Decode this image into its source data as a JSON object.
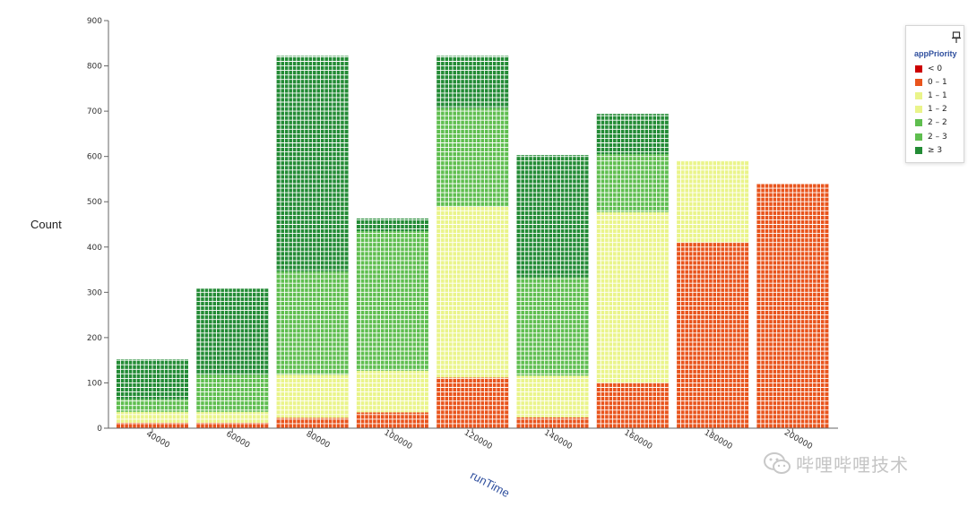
{
  "chart_data": {
    "type": "bar",
    "stacked": true,
    "title": "",
    "xlabel": "runTime",
    "ylabel": "Count",
    "ylim": [
      0,
      900
    ],
    "y_ticks": [
      0,
      100,
      200,
      300,
      400,
      500,
      600,
      700,
      800,
      900
    ],
    "categories": [
      "40000",
      "60000",
      "80000",
      "100000",
      "120000",
      "140000",
      "160000",
      "180000",
      "200000"
    ],
    "legend_title": "appPriority",
    "legend_position": "top-right",
    "series": [
      {
        "name": "< 0",
        "color": "#cc0000",
        "values": [
          0,
          0,
          0,
          0,
          0,
          0,
          0,
          0,
          0
        ]
      },
      {
        "name": "0 – 1",
        "color": "#e9541c",
        "values": [
          12,
          12,
          23,
          35,
          112,
          24,
          100,
          410,
          540
        ]
      },
      {
        "name": "1 – 1",
        "color": "#eaf48a",
        "values": [
          0,
          0,
          0,
          0,
          0,
          0,
          0,
          0,
          0
        ]
      },
      {
        "name": "1 – 2",
        "color": "#eaf48a",
        "values": [
          24,
          24,
          95,
          92,
          377,
          92,
          377,
          181,
          0
        ]
      },
      {
        "name": "2 – 2",
        "color": "#5fbe4f",
        "values": [
          0,
          0,
          0,
          0,
          0,
          0,
          0,
          0,
          0
        ]
      },
      {
        "name": "2 – 3",
        "color": "#5fbe4f",
        "values": [
          28,
          82,
          228,
          308,
          218,
          217,
          128,
          0,
          0
        ]
      },
      {
        "name": "≥ 3",
        "color": "#238b35",
        "values": [
          88,
          190,
          476,
          28,
          115,
          270,
          89,
          0,
          0
        ]
      }
    ]
  },
  "toolbar": {
    "pin_icon": "pin-icon"
  },
  "watermark": {
    "text": "哔哩哔哩技术"
  }
}
